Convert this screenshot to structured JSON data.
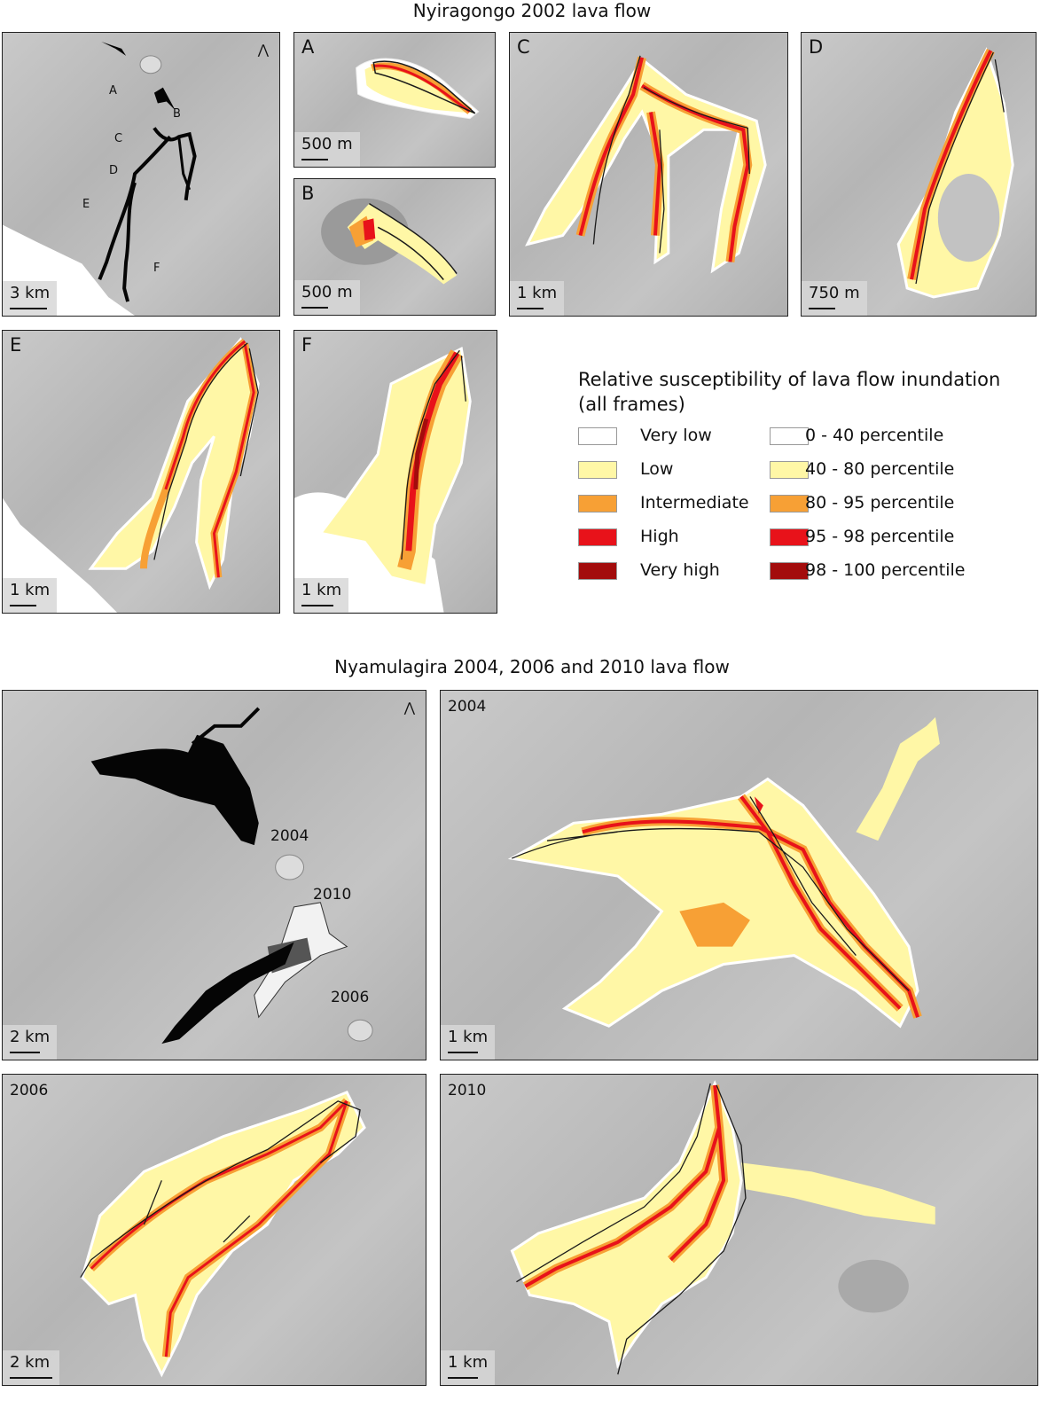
{
  "titles": {
    "nyiragongo": "Nyiragongo 2002 lava flow",
    "nyamulagira": "Nyamulagira 2004, 2006 and 2010 lava flow"
  },
  "colors": {
    "very_low": "#ffffff",
    "low": "#fff7a6",
    "intermediate": "#f7a035",
    "high": "#e8121a",
    "very_high": "#a30c0c",
    "outline": "#1a1a1a",
    "overview_flow": "#050505"
  },
  "north_arrow_icon": "north-arrow-icon",
  "panels": {
    "overview": {
      "markers": [
        "A",
        "B",
        "C",
        "D",
        "E",
        "F"
      ],
      "scale": "3 km"
    },
    "A": {
      "label": "A",
      "scale": "500 m"
    },
    "B": {
      "label": "B",
      "scale": "500 m"
    },
    "C": {
      "label": "C",
      "scale": "1 km"
    },
    "D": {
      "label": "D",
      "scale": "750 m"
    },
    "E": {
      "label": "E",
      "scale": "1 km"
    },
    "F": {
      "label": "F",
      "scale": "1 km"
    },
    "nyam_overview": {
      "labels": [
        "2004",
        "2010",
        "2006"
      ],
      "scale": "2 km"
    },
    "y2004": {
      "label": "2004",
      "scale": "1 km"
    },
    "y2006": {
      "label": "2006",
      "scale": "2 km"
    },
    "y2010": {
      "label": "2010",
      "scale": "1 km"
    }
  },
  "legend": {
    "title_line1": "Relative susceptibility of lava flow inundation",
    "title_line2": "(all frames)",
    "rows": [
      {
        "class": "Very low",
        "percentile": "0 - 40 percentile",
        "color": "#ffffff"
      },
      {
        "class": "Low",
        "percentile": "40 - 80 percentile",
        "color": "#fff7a6"
      },
      {
        "class": "Intermediate",
        "percentile": "80 - 95 percentile",
        "color": "#f7a035"
      },
      {
        "class": "High",
        "percentile": "95 - 98 percentile",
        "color": "#e8121a"
      },
      {
        "class": "Very high",
        "percentile": "98 - 100 percentile",
        "color": "#a30c0c"
      }
    ]
  }
}
